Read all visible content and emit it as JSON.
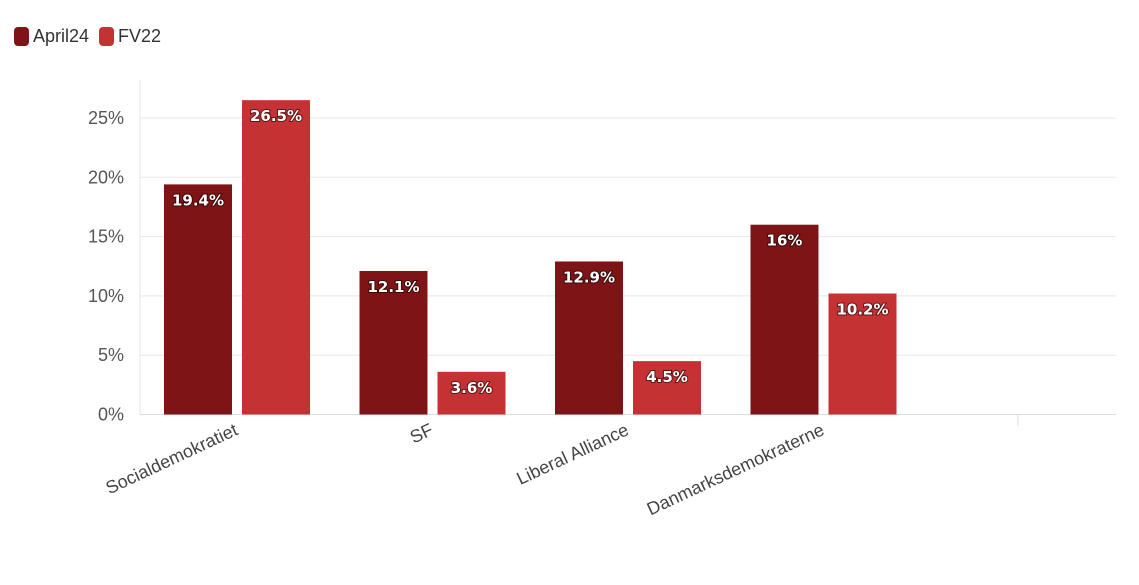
{
  "legend": [
    {
      "label": "April24",
      "color": "#7f1416"
    },
    {
      "label": "FV22",
      "color": "#c53233"
    }
  ],
  "chart_data": {
    "type": "bar",
    "categories": [
      "Socialdemokratiet",
      "SF",
      "Liberal Alliance",
      "Danmarksdemokraterne"
    ],
    "series": [
      {
        "name": "April24",
        "color": "#7f1416",
        "values": [
          19.4,
          12.1,
          12.9,
          16
        ],
        "labels": [
          "19.4%",
          "12.1%",
          "12.9%",
          "16%"
        ]
      },
      {
        "name": "FV22",
        "color": "#c53233",
        "values": [
          26.5,
          3.6,
          4.5,
          10.2
        ],
        "labels": [
          "26.5%",
          "3.6%",
          "4.5%",
          "10.2%"
        ]
      }
    ],
    "yticks": [
      "0%",
      "5%",
      "10%",
      "15%",
      "20%",
      "25%"
    ],
    "ytick_values": [
      0,
      5,
      10,
      15,
      20,
      25
    ],
    "ylim": [
      0,
      28.2
    ],
    "grid": true,
    "legend_position": "top-left"
  }
}
